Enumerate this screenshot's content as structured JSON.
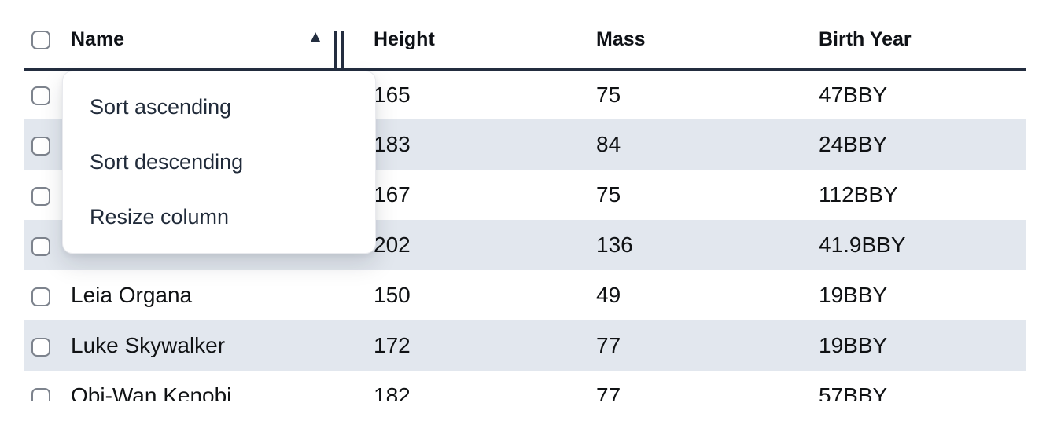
{
  "table": {
    "columns": [
      {
        "id": "name",
        "label": "Name",
        "sort": "ascending"
      },
      {
        "id": "height",
        "label": "Height"
      },
      {
        "id": "mass",
        "label": "Mass"
      },
      {
        "id": "birth_year",
        "label": "Birth Year"
      }
    ],
    "rows": [
      {
        "name": "",
        "height": "165",
        "mass": "75",
        "birth_year": "47BBY"
      },
      {
        "name": "",
        "height": "183",
        "mass": "84",
        "birth_year": "24BBY"
      },
      {
        "name": "",
        "height": "167",
        "mass": "75",
        "birth_year": "112BBY"
      },
      {
        "name": "",
        "height": "202",
        "mass": "136",
        "birth_year": "41.9BBY"
      },
      {
        "name": "Leia Organa",
        "height": "150",
        "mass": "49",
        "birth_year": "19BBY"
      },
      {
        "name": "Luke Skywalker",
        "height": "172",
        "mass": "77",
        "birth_year": "19BBY"
      },
      {
        "name": "Obi-Wan Kenobi",
        "height": "182",
        "mass": "77",
        "birth_year": "57BBY"
      }
    ],
    "all_checkboxes_unchecked": true
  },
  "menu": {
    "items": [
      "Sort ascending",
      "Sort descending",
      "Resize column"
    ]
  },
  "icons": {
    "sort_ascending_indicator": "▲",
    "resize_handle": "double-vertical-bar",
    "checkbox": "unchecked-rounded-square"
  },
  "colors": {
    "row_stripe": "#e2e7ee",
    "header_rule": "#232d3f",
    "menu_text": "#212b3a",
    "cell_text": "#101214",
    "checkbox_border": "#7d838d",
    "menu_border": "#e9eaee",
    "menu_bg": "#ffffff"
  }
}
